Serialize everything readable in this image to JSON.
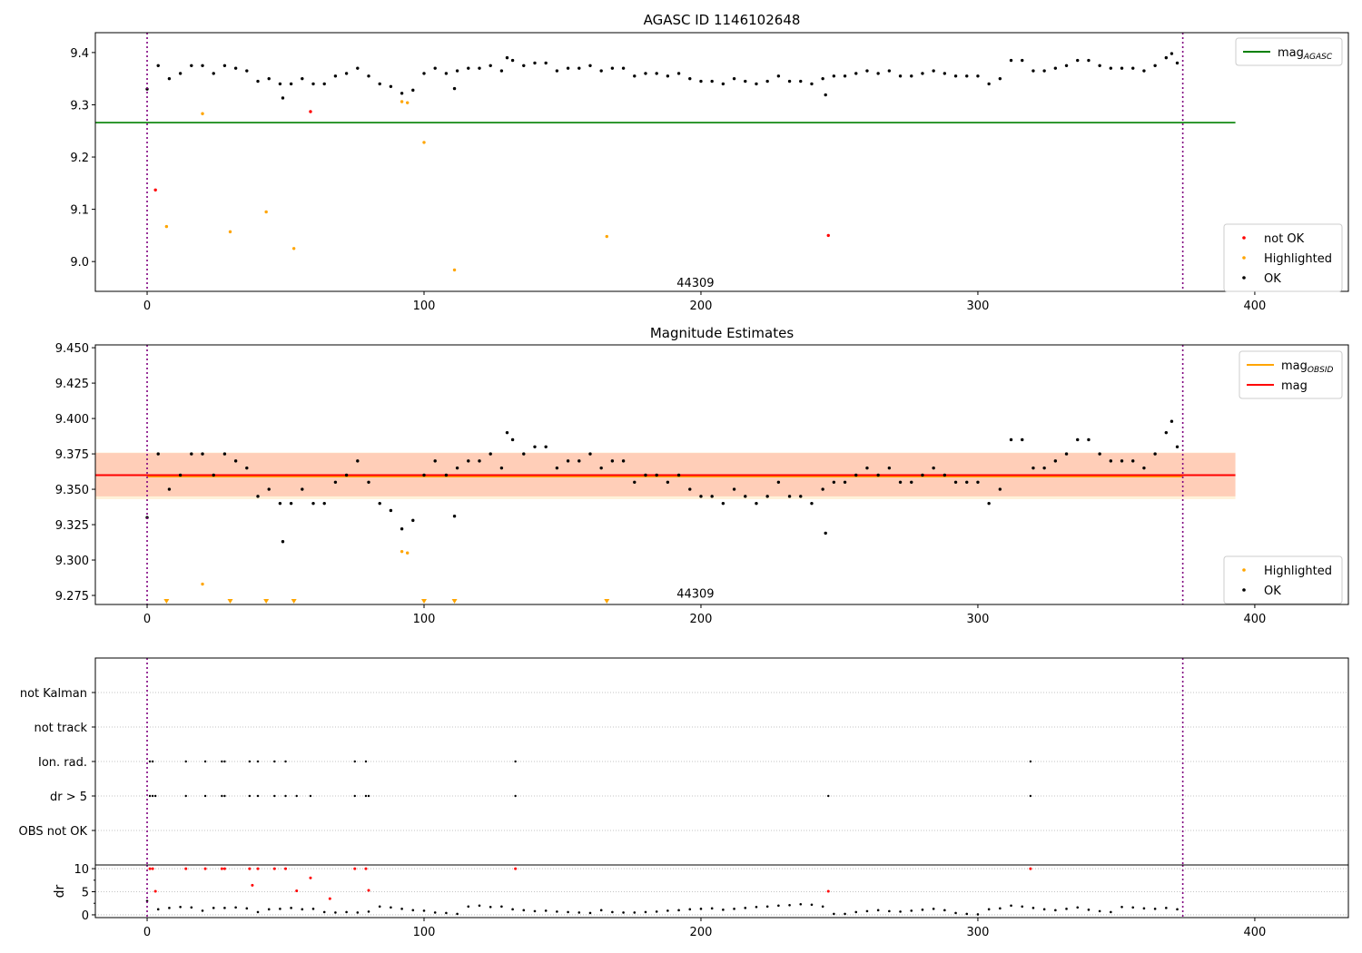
{
  "chart_data": [
    {
      "type": "scatter",
      "title": "AGASC ID 1146102648",
      "xlim": [
        -18.7,
        433.8
      ],
      "ylim": [
        8.943,
        9.438
      ],
      "xticks": [
        0,
        100,
        200,
        300,
        400
      ],
      "yticks": [
        9.0,
        9.1,
        9.2,
        9.3,
        9.4
      ],
      "ytick_labels": [
        "9.0",
        "9.1",
        "9.2",
        "9.3",
        "9.4"
      ],
      "vlines": [
        0,
        374
      ],
      "hlines": [
        {
          "name": "mag_AGASC",
          "y": 9.266,
          "x": [
            -18.7,
            393
          ],
          "color": "#008000"
        }
      ],
      "annotation": {
        "text": "44309",
        "x": 198,
        "y": 8.96
      },
      "legend_upper": {
        "placement": "top-right",
        "entries": [
          {
            "label": "mag",
            "sub": "AGASC",
            "color": "#008000"
          }
        ]
      },
      "legend_lower": {
        "placement": "bottom-right",
        "entries": [
          {
            "label": "not OK",
            "color": "#ff0000"
          },
          {
            "label": "Highlighted",
            "color": "#ffa500"
          },
          {
            "label": "OK",
            "color": "#000000"
          }
        ]
      },
      "series": {
        "not_ok": [
          [
            3,
            9.137
          ],
          [
            59,
            9.287
          ],
          [
            246,
            9.05
          ]
        ],
        "highlighted": [
          [
            7,
            9.067
          ],
          [
            20,
            9.283
          ],
          [
            30,
            9.057
          ],
          [
            43,
            9.095
          ],
          [
            53,
            9.025
          ],
          [
            92,
            9.306
          ],
          [
            94,
            9.304
          ],
          [
            100,
            9.228
          ],
          [
            111,
            8.984
          ],
          [
            166,
            9.048
          ]
        ]
      }
    },
    {
      "type": "scatter",
      "title": "Magnitude Estimates",
      "xlim": [
        -18.7,
        433.8
      ],
      "ylim": [
        9.2686,
        9.452
      ],
      "xticks": [
        0,
        100,
        200,
        300,
        400
      ],
      "yticks": [
        9.275,
        9.3,
        9.325,
        9.35,
        9.375,
        9.4,
        9.425,
        9.45
      ],
      "ytick_labels": [
        "9.275",
        "9.300",
        "9.325",
        "9.350",
        "9.375",
        "9.400",
        "9.425",
        "9.450"
      ],
      "vlines": [
        0,
        374
      ],
      "bands": [
        {
          "name": "mag_obsid_band",
          "y": [
            9.343,
            9.376
          ],
          "x": [
            -18.7,
            393
          ],
          "color": "#ffa500"
        },
        {
          "name": "mag_band",
          "y": [
            9.345,
            9.3756
          ],
          "x": [
            -18.7,
            393
          ],
          "color": "#ff0000"
        }
      ],
      "hlines": [
        {
          "name": "mag_OBSID",
          "y": 9.359,
          "x": [
            0,
            374
          ],
          "color": "#ffa500"
        },
        {
          "name": "mag",
          "y": 9.36,
          "x": [
            -18.7,
            393
          ],
          "color": "#ff0000"
        }
      ],
      "annotation": {
        "text": "44309",
        "x": 198,
        "y": 9.2765
      },
      "legend_upper": {
        "placement": "top-right",
        "entries": [
          {
            "label": "mag",
            "sub": "OBSID",
            "color": "#ffa500"
          },
          {
            "label": "mag",
            "sub": "",
            "color": "#ff0000"
          }
        ]
      },
      "legend_lower": {
        "placement": "bottom-right",
        "entries": [
          {
            "label": "Highlighted",
            "color": "#ffa500"
          },
          {
            "label": "OK",
            "color": "#000000"
          }
        ]
      },
      "series": {
        "highlighted": [
          [
            20,
            9.283
          ],
          [
            92,
            9.306
          ],
          [
            94,
            9.305
          ]
        ],
        "highlighted_offscale_x": [
          7,
          30,
          43,
          53,
          100,
          111,
          166
        ]
      }
    },
    {
      "type": "scatter",
      "title": "",
      "xlim": [
        -18.7,
        433.8
      ],
      "ylim": [
        -1,
        5
      ],
      "categories": [
        "OBS not OK",
        "dr > 5",
        "Ion. rad.",
        "not track",
        "not Kalman"
      ],
      "flags": {
        "Ion. rad.": [
          1,
          2,
          14,
          21,
          27,
          28,
          37,
          40,
          46,
          50,
          75,
          79,
          133,
          319
        ],
        "dr > 5": [
          1,
          2,
          3,
          14,
          21,
          27,
          28,
          37,
          40,
          46,
          50,
          54,
          59,
          75,
          79,
          80,
          133,
          246,
          319
        ]
      },
      "vlines": [
        0,
        374
      ]
    },
    {
      "type": "scatter",
      "title": "",
      "ylabel": "dr",
      "xlim": [
        -18.7,
        433.8
      ],
      "ylim": [
        -0.6,
        10.8
      ],
      "xticks": [
        0,
        100,
        200,
        300,
        400
      ],
      "yticks": [
        0,
        5,
        10
      ],
      "ytick_labels": [
        "0",
        "5",
        "10"
      ],
      "vlines": [
        0,
        374
      ],
      "dr_flagged": [
        [
          1,
          10
        ],
        [
          2,
          10
        ],
        [
          3,
          5.1
        ],
        [
          14,
          10
        ],
        [
          21,
          10
        ],
        [
          27,
          10
        ],
        [
          28,
          10
        ],
        [
          37,
          10
        ],
        [
          38,
          6.4
        ],
        [
          40,
          10
        ],
        [
          46,
          10
        ],
        [
          50,
          10
        ],
        [
          54,
          5.2
        ],
        [
          59,
          8
        ],
        [
          66,
          3.5
        ],
        [
          75,
          10
        ],
        [
          79,
          10
        ],
        [
          80,
          5.3
        ],
        [
          133,
          10
        ],
        [
          246,
          5.1
        ],
        [
          319,
          10
        ]
      ],
      "dr_ok": {
        "x_start": 0,
        "x_step": 4,
        "y": [
          3,
          1.2,
          1.5,
          1.7,
          1.6,
          0.9,
          1.5,
          1.5,
          1.6,
          1.4,
          0.6,
          1.2,
          1.3,
          1.5,
          1.2,
          1.3,
          0.6,
          0.5,
          0.6,
          0.5,
          0.7,
          1.8,
          1.6,
          1.3,
          1.0,
          0.9,
          0.5,
          0.4,
          0.2,
          1.8,
          2.0,
          1.7,
          1.8,
          1.2,
          1.0,
          0.8,
          0.9,
          0.7,
          0.6,
          0.5,
          0.4,
          1.0,
          0.6,
          0.5,
          0.5,
          0.6,
          0.7,
          0.9,
          1.0,
          1.2,
          1.3,
          1.4,
          1.1,
          1.3,
          1.5,
          1.7,
          1.8,
          2.0,
          2.1,
          2.3,
          2.2,
          1.8,
          0.2,
          0.2,
          0.6,
          0.8,
          1.0,
          0.8,
          0.7,
          0.9,
          1.1,
          1.3,
          1.0,
          0.4,
          0.2,
          0.1,
          1.2,
          1.4,
          2.0,
          1.8,
          1.5,
          1.2,
          1.0,
          1.3,
          1.6,
          1.1,
          0.8,
          0.6,
          1.7,
          1.6,
          1.4,
          1.3,
          1.5,
          1.2
        ]
      }
    }
  ],
  "ok_series": {
    "x_start": 0,
    "x_step": 4,
    "y": [
      9.33,
      9.375,
      9.35,
      9.36,
      9.375,
      9.375,
      9.36,
      9.375,
      9.37,
      9.365,
      9.345,
      9.35,
      9.34,
      9.34,
      9.35,
      9.34,
      9.34,
      9.355,
      9.36,
      9.37,
      9.355,
      9.34,
      9.335,
      9.322,
      9.328,
      9.36,
      9.37,
      9.36,
      9.365,
      9.37,
      9.37,
      9.375,
      9.365,
      9.385,
      9.375,
      9.38,
      9.38,
      9.365,
      9.37,
      9.37,
      9.375,
      9.365,
      9.37,
      9.37,
      9.355,
      9.36,
      9.36,
      9.355,
      9.36,
      9.35,
      9.345,
      9.345,
      9.34,
      9.35,
      9.345,
      9.34,
      9.345,
      9.355,
      9.345,
      9.345,
      9.34,
      9.35,
      9.355,
      9.355,
      9.36,
      9.365,
      9.36,
      9.365,
      9.355,
      9.355,
      9.36,
      9.365,
      9.36,
      9.355,
      9.355,
      9.355,
      9.34,
      9.35,
      9.385,
      9.385,
      9.365,
      9.365,
      9.37,
      9.375,
      9.385,
      9.385,
      9.375,
      9.37,
      9.37,
      9.37,
      9.365,
      9.375,
      9.39,
      9.38
    ],
    "extra": [
      [
        49,
        9.313
      ],
      [
        111,
        9.331
      ],
      [
        245,
        9.319
      ],
      [
        130,
        9.39
      ],
      [
        370,
        9.398
      ]
    ]
  }
}
